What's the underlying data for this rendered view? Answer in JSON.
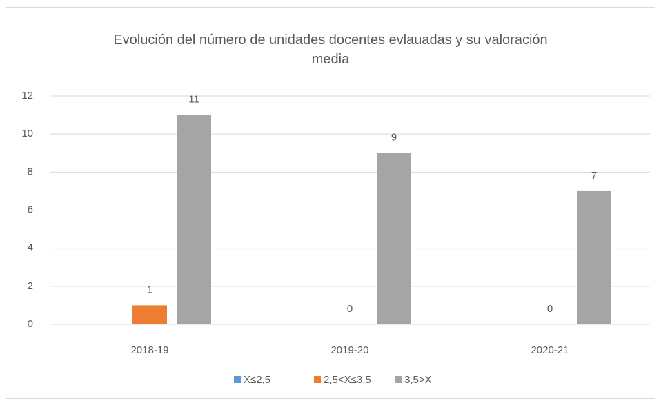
{
  "chart_data": {
    "type": "bar",
    "title": "Evolución del número de unidades docentes evlauadas y su valoración media",
    "categories": [
      "2018-19",
      "2019-20",
      "2020-21"
    ],
    "series": [
      {
        "name": "X≤2,5",
        "color": "#5b9bd5",
        "values": [
          null,
          null,
          null
        ]
      },
      {
        "name": "2,5<X≤3,5",
        "color": "#ed7d31",
        "values": [
          1,
          0,
          0
        ]
      },
      {
        "name": "3,5>X",
        "color": "#a5a5a5",
        "values": [
          11,
          9,
          7
        ]
      }
    ],
    "ylim": [
      0,
      12
    ],
    "yticks": [
      0,
      2,
      4,
      6,
      8,
      10,
      12
    ],
    "grid": true,
    "legend": "bottom"
  }
}
